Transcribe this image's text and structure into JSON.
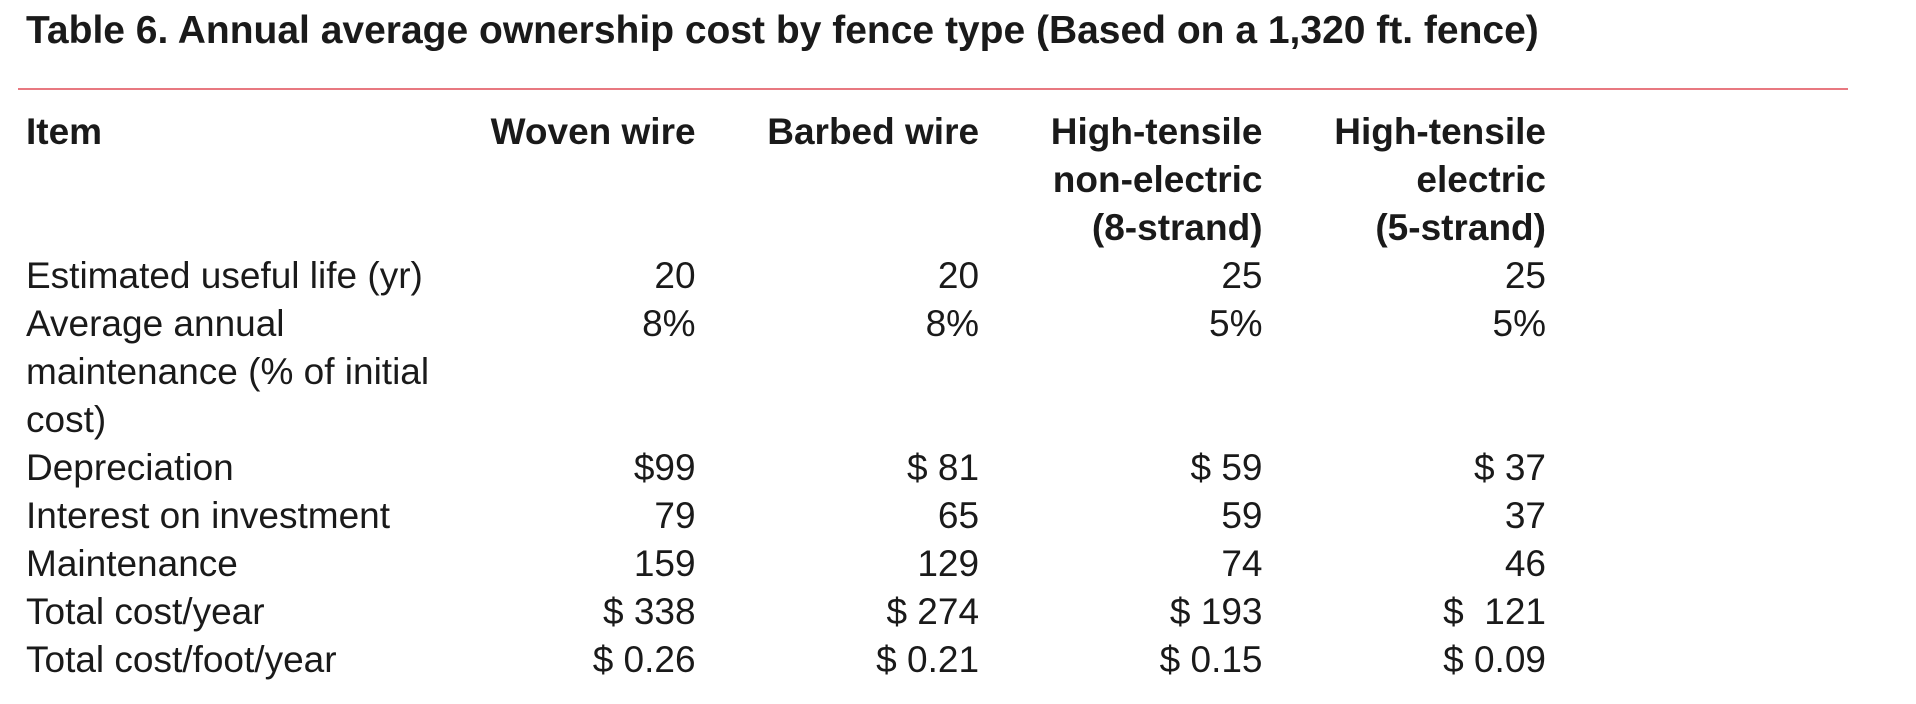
{
  "title": "Table 6. Annual average ownership cost by fence type (Based on a 1,320 ft. fence)",
  "accent_color": "#e87880",
  "table": {
    "headers": [
      "Item",
      "Woven wire",
      "Barbed wire",
      "High-tensile\nnon-electric\n(8-strand)",
      "High-tensile\nelectric\n(5-strand)"
    ],
    "rows": [
      {
        "label": "Estimated useful life (yr)",
        "cells": [
          "20",
          "20",
          "25",
          "25"
        ]
      },
      {
        "label": "Average annual maintenance (% of initial cost)",
        "cells": [
          "8%",
          "8%",
          "5%",
          "5%"
        ]
      },
      {
        "label": "Depreciation",
        "cells": [
          "$99",
          "$ 81",
          "$ 59",
          "$ 37"
        ]
      },
      {
        "label": "Interest on investment",
        "cells": [
          "79",
          "65",
          "59",
          "37"
        ]
      },
      {
        "label": "Maintenance",
        "cells": [
          "159",
          "129",
          "74",
          "46"
        ]
      },
      {
        "label": "Total cost/year",
        "cells": [
          "$ 338",
          "$ 274",
          "$ 193",
          "$  121"
        ]
      },
      {
        "label": "Total cost/foot/year",
        "cells": [
          "$ 0.26",
          "$ 0.21",
          "$ 0.15",
          "$ 0.09"
        ]
      }
    ]
  }
}
